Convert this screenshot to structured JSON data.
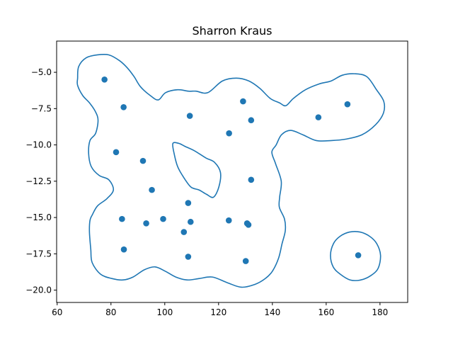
{
  "chart_data": {
    "type": "scatter",
    "title": "Sharron Kraus",
    "xlabel": "",
    "ylabel": "",
    "xlim": [
      59.8,
      190.3
    ],
    "ylim": [
      -20.85,
      -2.85
    ],
    "x_ticks": [
      60,
      80,
      100,
      120,
      140,
      160,
      180
    ],
    "y_ticks": [
      -5.0,
      -7.5,
      -10.0,
      -12.5,
      -15.0,
      -17.5,
      -20.0
    ],
    "x_tick_labels": [
      "60",
      "80",
      "100",
      "120",
      "140",
      "160",
      "180"
    ],
    "y_tick_labels": [
      "−5.0",
      "−7.5",
      "−10.0",
      "−12.5",
      "−15.0",
      "−17.5",
      "−20.0"
    ],
    "grid": false,
    "colors": {
      "series": "#1f77b4"
    },
    "series": [
      {
        "values": [
          [
            77.6,
            -5.5
          ],
          [
            84.7,
            -7.4
          ],
          [
            81.9,
            -10.5
          ],
          [
            91.9,
            -11.1
          ],
          [
            95.2,
            -13.1
          ],
          [
            84.1,
            -15.1
          ],
          [
            93.1,
            -15.4
          ],
          [
            99.4,
            -15.1
          ],
          [
            84.8,
            -17.2
          ],
          [
            107.1,
            -16.0
          ],
          [
            108.7,
            -14.0
          ],
          [
            109.6,
            -15.3
          ],
          [
            108.7,
            -17.7
          ],
          [
            109.3,
            -8.0
          ],
          [
            123.9,
            -9.2
          ],
          [
            129.1,
            -7.0
          ],
          [
            132.1,
            -8.3
          ],
          [
            132.1,
            -12.4
          ],
          [
            123.8,
            -15.2
          ],
          [
            130.6,
            -15.4
          ],
          [
            131.1,
            -15.5
          ],
          [
            130.1,
            -18.0
          ],
          [
            157.1,
            -8.1
          ],
          [
            167.9,
            -7.2
          ],
          [
            171.9,
            -17.6
          ]
        ]
      }
    ],
    "contours": [
      {
        "closed": true,
        "points": [
          [
            67.6,
            -5.4
          ],
          [
            68.0,
            -4.6
          ],
          [
            70.8,
            -4.0
          ],
          [
            75.0,
            -3.8
          ],
          [
            79.2,
            -3.8
          ],
          [
            83.2,
            -4.2
          ],
          [
            86.1,
            -4.7
          ],
          [
            88.6,
            -5.3
          ],
          [
            91.0,
            -6.0
          ],
          [
            94.6,
            -6.6
          ],
          [
            97.6,
            -6.9
          ],
          [
            100.3,
            -6.4
          ],
          [
            104.8,
            -6.2
          ],
          [
            108.8,
            -6.3
          ],
          [
            111.6,
            -6.3
          ],
          [
            116.0,
            -6.4
          ],
          [
            121.4,
            -5.6
          ],
          [
            126.6,
            -5.4
          ],
          [
            131.3,
            -5.6
          ],
          [
            135.3,
            -6.1
          ],
          [
            139.2,
            -6.8
          ],
          [
            142.6,
            -7.1
          ],
          [
            145.0,
            -7.3
          ],
          [
            147.8,
            -6.8
          ],
          [
            152.3,
            -6.2
          ],
          [
            157.4,
            -5.8
          ],
          [
            161.8,
            -5.6
          ],
          [
            166.0,
            -5.2
          ],
          [
            170.5,
            -5.1
          ],
          [
            175.1,
            -5.3
          ],
          [
            178.7,
            -6.2
          ],
          [
            181.4,
            -7.0
          ],
          [
            181.3,
            -7.8
          ],
          [
            178.4,
            -8.6
          ],
          [
            173.3,
            -9.3
          ],
          [
            167.4,
            -9.6
          ],
          [
            162.0,
            -9.7
          ],
          [
            156.3,
            -9.7
          ],
          [
            151.3,
            -9.3
          ],
          [
            146.8,
            -9.0
          ],
          [
            143.4,
            -9.3
          ],
          [
            141.4,
            -10.0
          ],
          [
            139.8,
            -10.5
          ],
          [
            141.2,
            -11.3
          ],
          [
            143.3,
            -12.5
          ],
          [
            142.7,
            -13.6
          ],
          [
            142.6,
            -14.3
          ],
          [
            144.5,
            -15.1
          ],
          [
            144.8,
            -15.9
          ],
          [
            143.6,
            -16.8
          ],
          [
            142.3,
            -17.8
          ],
          [
            140.0,
            -18.7
          ],
          [
            137.4,
            -19.2
          ],
          [
            133.6,
            -19.6
          ],
          [
            128.5,
            -19.8
          ],
          [
            123.4,
            -19.5
          ],
          [
            117.7,
            -19.1
          ],
          [
            112.9,
            -19.2
          ],
          [
            108.3,
            -19.3
          ],
          [
            104.1,
            -19.1
          ],
          [
            100.2,
            -18.7
          ],
          [
            96.4,
            -18.4
          ],
          [
            92.4,
            -18.6
          ],
          [
            88.2,
            -19.1
          ],
          [
            84.5,
            -19.3
          ],
          [
            80.3,
            -19.2
          ],
          [
            76.1,
            -18.9
          ],
          [
            73.0,
            -18.1
          ],
          [
            72.5,
            -17.2
          ],
          [
            72.0,
            -16.0
          ],
          [
            72.2,
            -15.2
          ],
          [
            73.1,
            -14.8
          ],
          [
            75.0,
            -14.2
          ],
          [
            78.5,
            -13.7
          ],
          [
            80.9,
            -13.1
          ],
          [
            79.2,
            -12.4
          ],
          [
            75.6,
            -12.1
          ],
          [
            72.7,
            -11.5
          ],
          [
            71.7,
            -10.6
          ],
          [
            72.2,
            -9.7
          ],
          [
            74.3,
            -9.2
          ],
          [
            75.2,
            -8.3
          ],
          [
            74.2,
            -7.7
          ],
          [
            72.0,
            -7.1
          ],
          [
            69.5,
            -6.6
          ],
          [
            67.6,
            -5.9
          ]
        ]
      },
      {
        "closed": true,
        "points": [
          [
            103.0,
            -9.9
          ],
          [
            105.3,
            -9.9
          ],
          [
            107.5,
            -10.1
          ],
          [
            111.0,
            -10.4
          ],
          [
            115.3,
            -10.9
          ],
          [
            118.5,
            -11.2
          ],
          [
            120.7,
            -11.9
          ],
          [
            120.1,
            -12.9
          ],
          [
            118.1,
            -13.6
          ],
          [
            115.5,
            -13.4
          ],
          [
            112.7,
            -13.1
          ],
          [
            109.7,
            -12.9
          ],
          [
            106.9,
            -12.2
          ],
          [
            104.8,
            -11.5
          ],
          [
            103.6,
            -10.7
          ]
        ]
      },
      {
        "closed": true,
        "points": [
          [
            161.6,
            -17.6
          ],
          [
            162.7,
            -16.8
          ],
          [
            165.1,
            -16.3
          ],
          [
            168.7,
            -16.0
          ],
          [
            172.6,
            -16.0
          ],
          [
            176.2,
            -16.3
          ],
          [
            178.8,
            -16.8
          ],
          [
            180.2,
            -17.6
          ],
          [
            179.3,
            -18.5
          ],
          [
            176.6,
            -19.0
          ],
          [
            172.9,
            -19.3
          ],
          [
            168.9,
            -19.3
          ],
          [
            165.2,
            -18.9
          ],
          [
            162.6,
            -18.4
          ]
        ]
      }
    ]
  }
}
